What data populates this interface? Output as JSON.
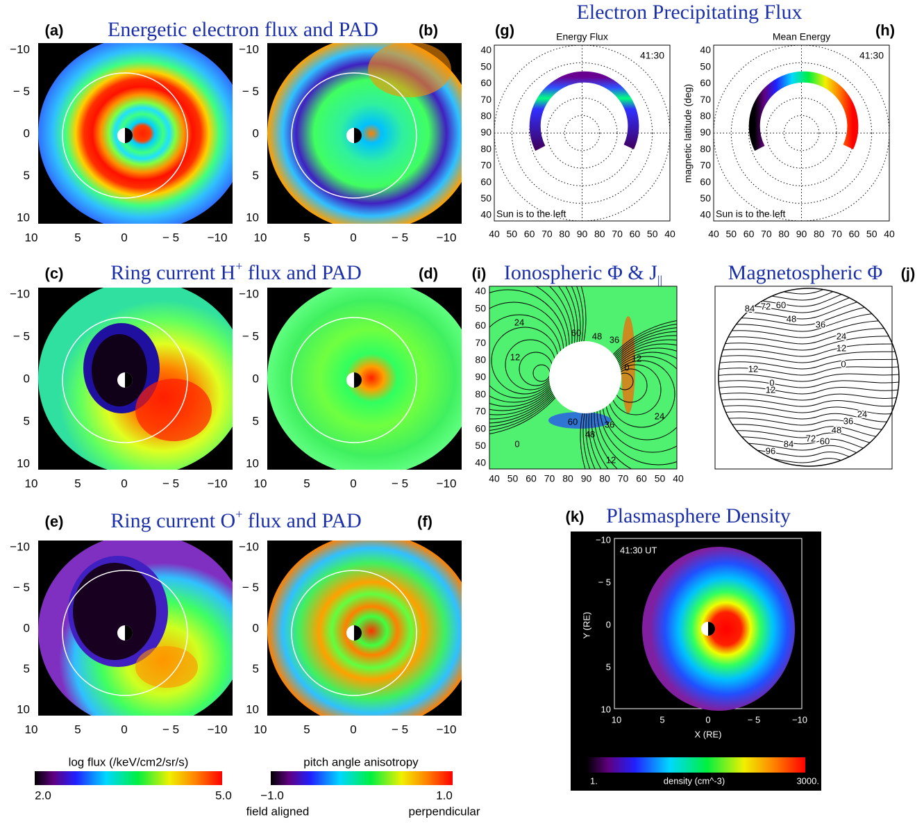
{
  "electron": {
    "title": "Energetic electron flux and PAD",
    "labels": [
      "(a)",
      "(b)"
    ]
  },
  "hplus": {
    "title": {
      "pre": "Ring current H",
      "sup": "+",
      "post": " flux and PAD"
    },
    "labels": [
      "(c)",
      "(d)"
    ]
  },
  "oplus": {
    "title": {
      "pre": "Ring current O",
      "sup": "+",
      "post": " flux and PAD"
    },
    "labels": [
      "(e)",
      "(f)"
    ]
  },
  "cart_yticks": [
    "−10",
    "− 5",
    "0",
    "5",
    "10"
  ],
  "cart_xticks": [
    "10",
    "5",
    "0",
    "− 5",
    "−10"
  ],
  "precip": {
    "title": "Electron Precipitating Flux",
    "labels": [
      "(g)",
      "(h)"
    ],
    "subtitles": [
      "Energy Flux",
      "Mean Energy"
    ],
    "time": "41:30",
    "note": "Sun is to the left",
    "ylabel": "magnetic latitude (deg)"
  },
  "polar_ticks": [
    "40",
    "50",
    "60",
    "70",
    "80",
    "90",
    "80",
    "70",
    "60",
    "50",
    "40"
  ],
  "iono": {
    "label": "(i)",
    "title": {
      "pre": "Ionospheric Φ & J",
      "sub": "||"
    },
    "contours": [
      "24",
      "12",
      "0",
      "60",
      "48",
      "36",
      "0",
      "12",
      "24",
      "36",
      "60",
      "48",
      "12"
    ]
  },
  "magneto": {
    "label": "(j)",
    "title": "Magnetospheric Φ",
    "contours": [
      "84",
      "72",
      "60",
      "48",
      "36",
      "24",
      "12",
      "0",
      "12",
      "0",
      "12",
      "24",
      "36",
      "48",
      "72",
      "60",
      "84",
      "96"
    ]
  },
  "plasma": {
    "label": "(k)",
    "title": "Plasmasphere Density",
    "time": "41:30 UT",
    "ylabel": "Y (RE)",
    "xlabel": "X (RE)",
    "cbar_min": "1.",
    "cbar_title": "density (cm^-3)",
    "cbar_max": "3000."
  },
  "flux_bar": {
    "title": "log flux (/keV/cm2/sr/s)",
    "min": "2.0",
    "max": "5.0"
  },
  "pad_bar": {
    "title": "pitch angle anisotropy",
    "min": "−1.0",
    "max": "1.0",
    "left": "field aligned",
    "right": "perpendicular"
  }
}
